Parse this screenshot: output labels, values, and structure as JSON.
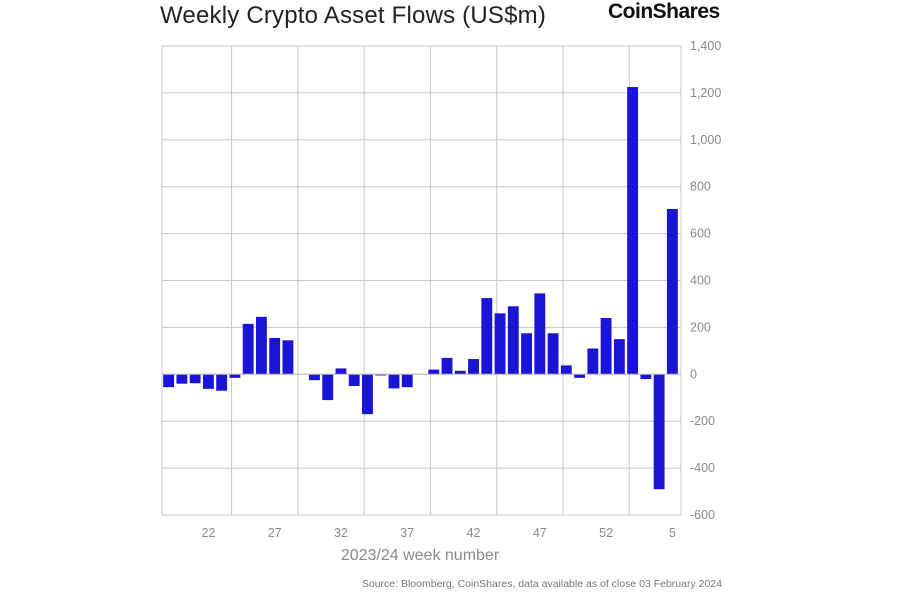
{
  "header": {
    "title": "Weekly Crypto Asset Flows (US$m)",
    "brand": "CoinShares"
  },
  "footer": {
    "source": "Source: Bloomberg, CoinShares, data available as of close 03 February 2024"
  },
  "colors": {
    "bar": "#1a14d6",
    "grid": "#c8c8c8",
    "text": "#8a8a8a"
  },
  "chart_data": {
    "type": "bar",
    "title": "Weekly Crypto Asset Flows (US$m)",
    "xlabel": "2023/24 week number",
    "ylabel": "",
    "ylim": [
      -600,
      1400
    ],
    "y_ticks": [
      -600,
      -400,
      -200,
      0,
      200,
      400,
      600,
      800,
      1000,
      1200,
      1400
    ],
    "y_tick_labels": [
      "-600",
      "-400",
      "-200",
      "0",
      "200",
      "400",
      "600",
      "800",
      "1,000",
      "1,200",
      "1,400"
    ],
    "x_tick_labels": [
      {
        "label": "22",
        "index": 3
      },
      {
        "label": "27",
        "index": 8
      },
      {
        "label": "32",
        "index": 13
      },
      {
        "label": "37",
        "index": 18
      },
      {
        "label": "42",
        "index": 23
      },
      {
        "label": "47",
        "index": 28
      },
      {
        "label": "52",
        "index": 33
      },
      {
        "label": "5",
        "index": 38
      }
    ],
    "grid": true,
    "legend": "none",
    "categories": [
      "19",
      "20",
      "21",
      "22",
      "23",
      "24",
      "25",
      "26",
      "27",
      "28",
      "29",
      "30",
      "31",
      "32",
      "33",
      "34",
      "35",
      "36",
      "37",
      "38",
      "39",
      "40",
      "41",
      "42",
      "43",
      "44",
      "45",
      "46",
      "47",
      "48",
      "49",
      "50",
      "51",
      "52",
      "1",
      "2",
      "3",
      "4",
      "5"
    ],
    "values": [
      -55,
      -40,
      -38,
      -62,
      -70,
      -15,
      215,
      245,
      155,
      145,
      0,
      -25,
      -110,
      25,
      -50,
      -170,
      -5,
      -60,
      -55,
      0,
      20,
      70,
      15,
      65,
      325,
      260,
      290,
      175,
      345,
      175,
      38,
      -15,
      110,
      240,
      150,
      1225,
      -20,
      -490,
      705
    ]
  }
}
